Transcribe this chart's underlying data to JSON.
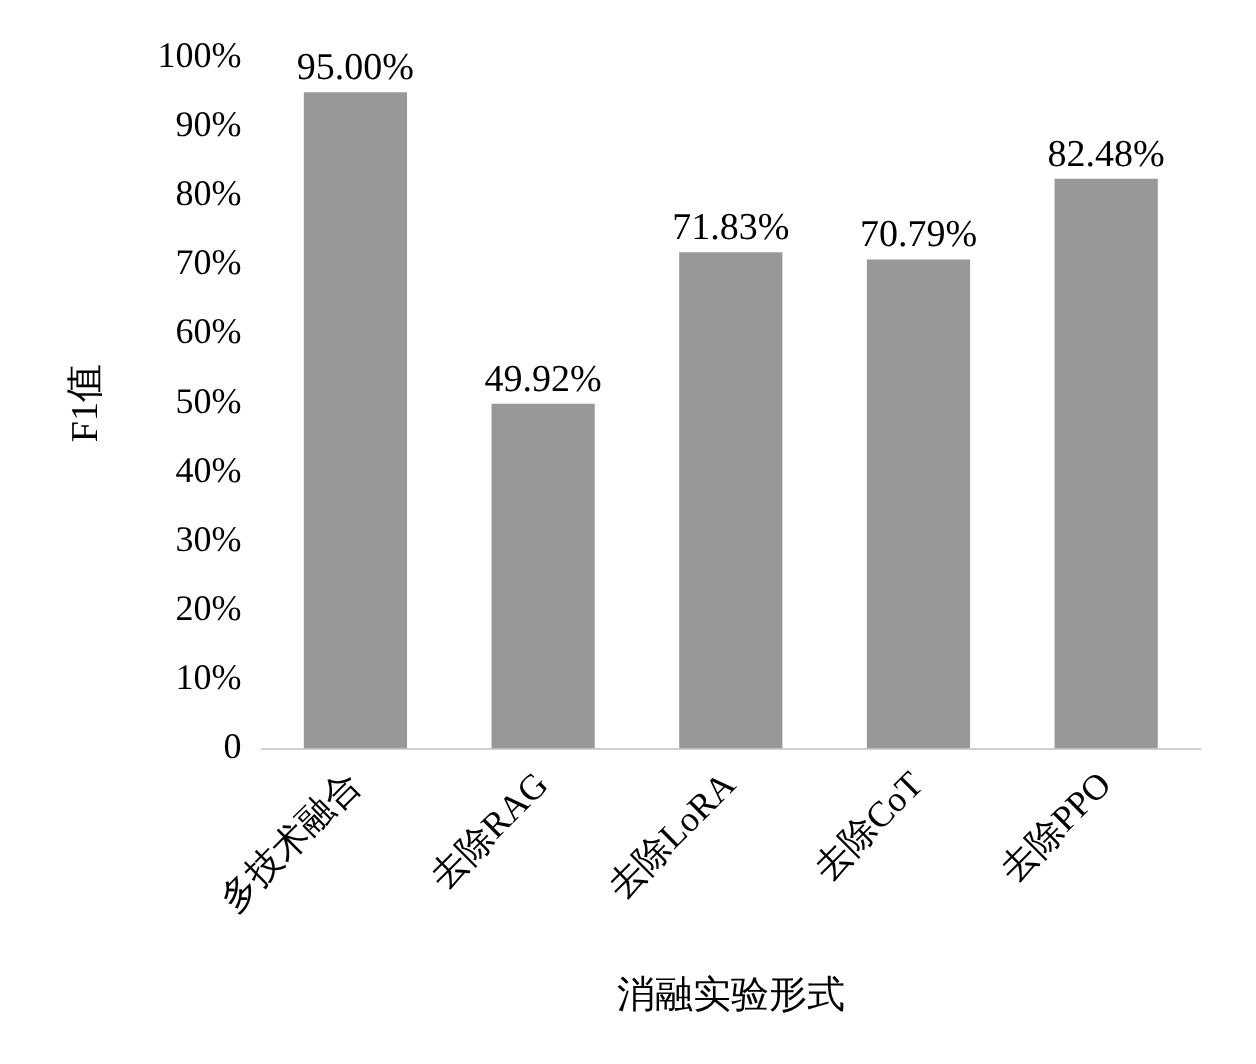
{
  "chart_data": {
    "type": "bar",
    "xlabel": "消融实验形式",
    "ylabel": "F1值",
    "categories": [
      "多技术融合",
      "去除RAG",
      "去除LoRA",
      "去除CoT",
      "去除PPO"
    ],
    "values": [
      95.0,
      49.92,
      71.83,
      70.79,
      82.48
    ],
    "value_labels": [
      "95.00%",
      "49.92%",
      "71.83%",
      "70.79%",
      "82.48%"
    ],
    "color": "#989898",
    "ylim": [
      0,
      100
    ],
    "yticks": [
      0,
      {
        "value": 10,
        "label": "10%"
      },
      {
        "value": 20,
        "label": "20%"
      },
      {
        "value": 30,
        "label": "30%"
      },
      {
        "value": 40,
        "label": "40%"
      },
      {
        "value": 50,
        "label": "50%"
      },
      {
        "value": 60,
        "label": "60%"
      },
      {
        "value": 70,
        "label": "70%"
      },
      {
        "value": 80,
        "label": "80%"
      },
      {
        "value": 90,
        "label": "90%"
      },
      {
        "value": 100,
        "label": "100%"
      }
    ],
    "grid": false,
    "legend": false
  }
}
